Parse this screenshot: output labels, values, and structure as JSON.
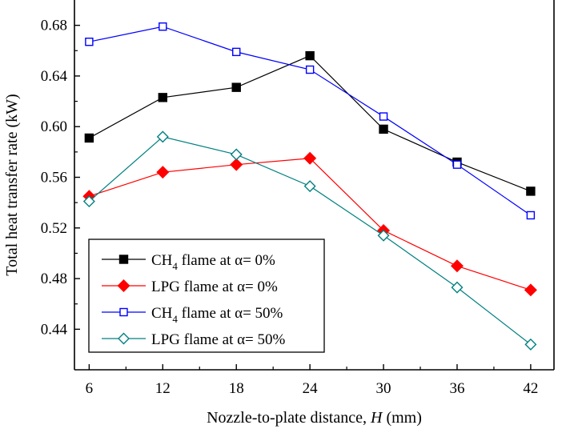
{
  "chart_data": {
    "type": "line",
    "title": "",
    "xlabel": "Nozzle-to-plate distance, H (mm)",
    "xlabel_parts": [
      "Nozzle-to-plate distance, ",
      "H",
      " (mm)"
    ],
    "ylabel": "Total heat transfer rate (kW)",
    "x": [
      6,
      12,
      18,
      24,
      30,
      36,
      42
    ],
    "x_tick_labels": [
      "6",
      "12",
      "18",
      "24",
      "30",
      "36",
      "42"
    ],
    "y_ticks": [
      0.44,
      0.48,
      0.52,
      0.56,
      0.6,
      0.64,
      0.68
    ],
    "y_tick_labels": [
      "0.44",
      "0.48",
      "0.52",
      "0.56",
      "0.60",
      "0.64",
      "0.68"
    ],
    "xlim": [
      4.8,
      43.9
    ],
    "ylim": [
      0.408,
      0.7
    ],
    "grid": false,
    "legend_position": "bottom-left",
    "series": [
      {
        "name": "CH4 flame at α= 0%",
        "legend_parts": [
          "CH",
          "4",
          " flame at α= 0%"
        ],
        "color": "#000000",
        "marker": "square-filled",
        "values": [
          0.591,
          0.623,
          0.631,
          0.656,
          0.598,
          0.572,
          0.549
        ]
      },
      {
        "name": "LPG flame at α= 0%",
        "legend_parts": [
          "LPG flame at α=  0%"
        ],
        "color": "#ff0000",
        "marker": "diamond-filled",
        "values": [
          0.545,
          0.564,
          0.57,
          0.575,
          0.518,
          0.49,
          0.471
        ]
      },
      {
        "name": "CH4 flame at α= 50%",
        "legend_parts": [
          "CH",
          "4",
          " flame at α= 50%"
        ],
        "color": "#0000ff",
        "marker": "square-open",
        "values": [
          0.667,
          0.679,
          0.659,
          0.645,
          0.608,
          0.57,
          0.53
        ]
      },
      {
        "name": "LPG flame at α= 50%",
        "legend_parts": [
          "LPG flame at α= 50%"
        ],
        "color": "#008080",
        "marker": "diamond-open",
        "values": [
          0.541,
          0.592,
          0.578,
          0.553,
          0.514,
          0.473,
          0.428
        ]
      }
    ]
  }
}
